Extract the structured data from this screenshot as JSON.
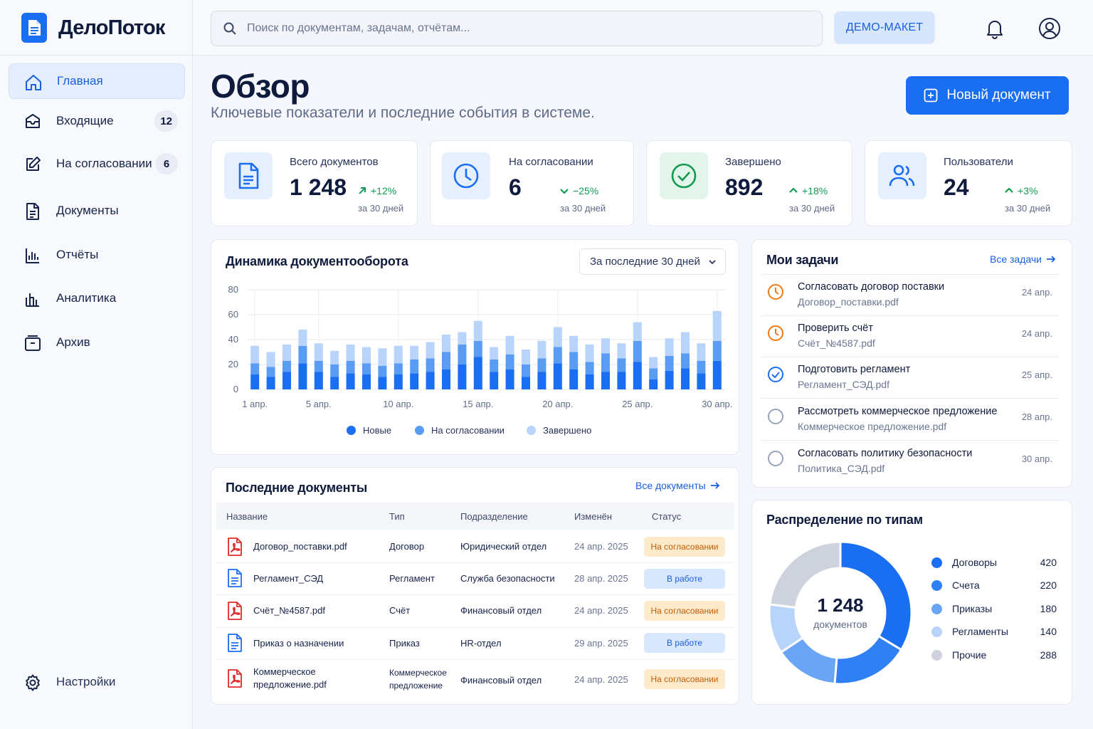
{
  "app": {
    "name": "ДелоПоток"
  },
  "search": {
    "placeholder": "Поиск по документам, задачам, отчётам..."
  },
  "topbar": {
    "demo_badge": "ДЕМО-МАКЕТ"
  },
  "sidebar": {
    "items": [
      {
        "label": "Главная",
        "icon": "home-icon",
        "active": true
      },
      {
        "label": "Входящие",
        "icon": "inbox-icon",
        "badge": "12"
      },
      {
        "label": "На согласовании",
        "icon": "edit-icon",
        "badge": "6"
      },
      {
        "label": "Документы",
        "icon": "document-icon"
      },
      {
        "label": "Отчёты",
        "icon": "report-icon"
      },
      {
        "label": "Аналитика",
        "icon": "analytics-icon"
      },
      {
        "label": "Архив",
        "icon": "archive-icon"
      }
    ],
    "settings_label": "Настройки"
  },
  "header": {
    "title": "Обзор",
    "subtitle": "Ключевые показатели и последние события в системе.",
    "new_button": "Новый документ"
  },
  "stats": [
    {
      "label": "Всего документов",
      "value": "1 248",
      "trend": "+12%",
      "direction": "up",
      "period": "за 30 дней",
      "icon": "document-icon",
      "color": "#1a6ef2",
      "bg": "#e6effd"
    },
    {
      "label": "На согласовании",
      "value": "6",
      "trend": "−25%",
      "direction": "down",
      "period": "за 30 дней",
      "icon": "clock-icon",
      "color": "#1a6ef2",
      "bg": "#e6effd"
    },
    {
      "label": "Завершено",
      "value": "892",
      "trend": "+18%",
      "direction": "up",
      "period": "за 30 дней",
      "icon": "check-circle-icon",
      "color": "#139a52",
      "bg": "#e3f5ea"
    },
    {
      "label": "Пользователи",
      "value": "24",
      "trend": "+3%",
      "direction": "up",
      "period": "за 30 дней",
      "icon": "users-icon",
      "color": "#1a6ef2",
      "bg": "#e6effd"
    }
  ],
  "chart": {
    "title": "Динамика документооборота",
    "period": "За последние 30 дней"
  },
  "chart_data": {
    "type": "bar",
    "stacked": true,
    "categories": [
      "1",
      "2",
      "3",
      "4",
      "5",
      "6",
      "7",
      "8",
      "9",
      "10",
      "11",
      "12",
      "13",
      "14",
      "15",
      "16",
      "17",
      "18",
      "19",
      "20",
      "21",
      "22",
      "23",
      "24",
      "25",
      "26",
      "27",
      "28",
      "29",
      "30"
    ],
    "x_tick_labels": [
      "1 апр.",
      "5 апр.",
      "10 апр.",
      "15 апр.",
      "20 апр.",
      "25 апр.",
      "30 апр."
    ],
    "x_tick_positions": [
      1,
      5,
      10,
      15,
      20,
      25,
      30
    ],
    "series": [
      {
        "name": "Новые",
        "color": "#1a6ef2",
        "values": [
          12,
          10,
          14,
          21,
          14,
          10,
          13,
          12,
          10,
          12,
          13,
          14,
          16,
          20,
          26,
          14,
          16,
          10,
          14,
          21,
          16,
          12,
          14,
          14,
          22,
          8,
          15,
          17,
          13,
          23
        ]
      },
      {
        "name": "На согласовании",
        "color": "#5a9cf3",
        "values": [
          9,
          8,
          9,
          14,
          9,
          10,
          10,
          9,
          9,
          9,
          11,
          11,
          14,
          16,
          13,
          10,
          12,
          10,
          11,
          13,
          14,
          10,
          15,
          11,
          17,
          9,
          12,
          12,
          10,
          16
        ]
      },
      {
        "name": "Завершено",
        "color": "#b9d4fa",
        "values": [
          14,
          12,
          13,
          13,
          14,
          11,
          13,
          13,
          14,
          14,
          11,
          13,
          14,
          10,
          16,
          10,
          15,
          12,
          14,
          16,
          13,
          14,
          12,
          12,
          15,
          9,
          14,
          17,
          14,
          24
        ]
      }
    ],
    "ylim": [
      0,
      80
    ],
    "yticks": [
      0,
      20,
      40,
      60,
      80
    ],
    "grid": true,
    "legend": "bottom"
  },
  "tasks": {
    "title": "Мои задачи",
    "link": "Все задачи",
    "items": [
      {
        "title": "Согласовать договор поставки",
        "file": "Договор_поставки.pdf",
        "date": "24 апр.",
        "state": "pending"
      },
      {
        "title": "Проверить счёт",
        "file": "Счёт_№4587.pdf",
        "date": "24 апр.",
        "state": "pending"
      },
      {
        "title": "Подготовить регламент",
        "file": "Регламент_СЭД.pdf",
        "date": "25 апр.",
        "state": "done"
      },
      {
        "title": "Рассмотреть коммерческое предложение",
        "file": "Коммерческое предложение.pdf",
        "date": "28 апр.",
        "state": "todo"
      },
      {
        "title": "Согласовать политику безопасности",
        "file": "Политика_СЭД.pdf",
        "date": "30 апр.",
        "state": "todo"
      }
    ]
  },
  "docs": {
    "title": "Последние документы",
    "link": "Все документы",
    "columns": [
      "Название",
      "Тип",
      "Подразделение",
      "Изменён",
      "Статус"
    ],
    "rows": [
      {
        "name": "Договор_поставки.pdf",
        "type": "Договор",
        "dept": "Юридический отдел",
        "date": "24 апр. 2025",
        "status": "На согласовании",
        "kind": "pdf",
        "status_kind": "pending"
      },
      {
        "name": "Регламент_СЭД",
        "type": "Регламент",
        "dept": "Служба безопасности",
        "date": "28 апр. 2025",
        "status": "В работе",
        "kind": "doc",
        "status_kind": "work"
      },
      {
        "name": "Счёт_№4587.pdf",
        "type": "Счёт",
        "dept": "Финансовый отдел",
        "date": "24 апр. 2025",
        "status": "На согласовании",
        "kind": "pdf",
        "status_kind": "pending"
      },
      {
        "name": "Приказ о назначении",
        "type": "Приказ",
        "dept": "HR-отдел",
        "date": "29 апр. 2025",
        "status": "В работе",
        "kind": "doc",
        "status_kind": "work"
      },
      {
        "name": "Коммерческое предложение.pdf",
        "type": "Коммерческое предложение",
        "dept": "Финансовый отдел",
        "date": "24 апр. 2025",
        "status": "На согласовании",
        "kind": "pdf",
        "status_kind": "pending"
      }
    ]
  },
  "distribution": {
    "title": "Распределение по типам",
    "total": "1 248",
    "total_label": "документов",
    "items": [
      {
        "name": "Договоры",
        "count": 420,
        "color": "#1a6ef2"
      },
      {
        "name": "Счета",
        "count": 220,
        "color": "#2f80f5"
      },
      {
        "name": "Приказы",
        "count": 180,
        "color": "#6aa5f5"
      },
      {
        "name": "Регламенты",
        "count": 140,
        "color": "#b9d4fa"
      },
      {
        "name": "Прочие",
        "count": 288,
        "color": "#cdd2dc"
      }
    ]
  }
}
